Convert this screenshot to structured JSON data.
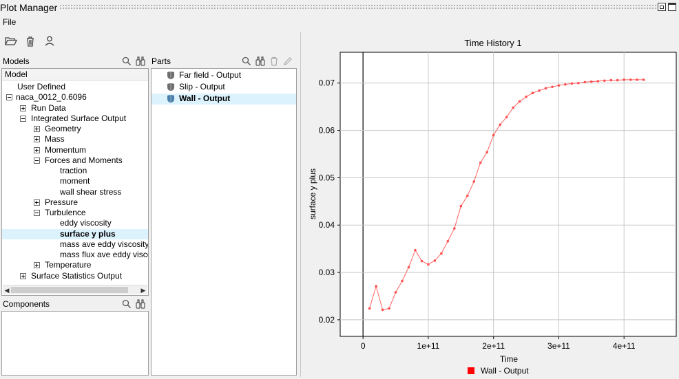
{
  "window": {
    "title": "Plot Manager"
  },
  "menu": {
    "file": "File"
  },
  "toolbar": {
    "open_icon": "folder-open-icon",
    "delete_icon": "trash-icon",
    "user_icon": "user-icon"
  },
  "models_panel": {
    "label": "Models",
    "header": "Model",
    "tree": [
      {
        "label": "User Defined",
        "level": 0,
        "expander": "none"
      },
      {
        "label": "naca_0012_0.6096",
        "level": 0,
        "expander": "minus"
      },
      {
        "label": "Run Data",
        "level": 1,
        "expander": "plus"
      },
      {
        "label": "Integrated Surface Output",
        "level": 1,
        "expander": "minus"
      },
      {
        "label": "Geometry",
        "level": 2,
        "expander": "plus"
      },
      {
        "label": "Mass",
        "level": 2,
        "expander": "plus"
      },
      {
        "label": "Momentum",
        "level": 2,
        "expander": "plus"
      },
      {
        "label": "Forces and Moments",
        "level": 2,
        "expander": "minus"
      },
      {
        "label": "traction",
        "level": 3,
        "expander": "none"
      },
      {
        "label": "moment",
        "level": 3,
        "expander": "none"
      },
      {
        "label": "wall shear stress",
        "level": 3,
        "expander": "none"
      },
      {
        "label": "Pressure",
        "level": 2,
        "expander": "plus"
      },
      {
        "label": "Turbulence",
        "level": 2,
        "expander": "minus"
      },
      {
        "label": "eddy viscosity",
        "level": 3,
        "expander": "none"
      },
      {
        "label": "surface y plus",
        "level": 3,
        "expander": "none",
        "selected": true
      },
      {
        "label": "mass ave eddy viscosity",
        "level": 3,
        "expander": "none"
      },
      {
        "label": "mass flux ave eddy viscos",
        "level": 3,
        "expander": "none"
      },
      {
        "label": "Temperature",
        "level": 2,
        "expander": "plus"
      },
      {
        "label": "Surface Statistics Output",
        "level": 1,
        "expander": "plus"
      }
    ]
  },
  "parts_panel": {
    "label": "Parts",
    "items": [
      {
        "label": "Far field - Output",
        "selected": false
      },
      {
        "label": "Slip - Output",
        "selected": false
      },
      {
        "label": "Wall - Output",
        "selected": true
      }
    ]
  },
  "components_panel": {
    "label": "Components"
  },
  "chart_data": {
    "type": "line",
    "title": "Time History 1",
    "xlabel": "Time",
    "ylabel": "surface y plus",
    "xlim": [
      -35000000000.0,
      480000000000.0
    ],
    "ylim": [
      0.0165,
      0.0765
    ],
    "xticks": [
      0,
      100000000000.0,
      200000000000.0,
      300000000000.0,
      400000000000.0
    ],
    "xtick_labels": [
      "0",
      "1e+11",
      "2e+11",
      "3e+11",
      "4e+11"
    ],
    "yticks": [
      0.02,
      0.03,
      0.04,
      0.05,
      0.06,
      0.07
    ],
    "ytick_labels": [
      "0.02",
      "0.03",
      "0.04",
      "0.05",
      "0.06",
      "0.07"
    ],
    "grid": true,
    "legend": "bottom-center",
    "series": [
      {
        "name": "Wall - Output",
        "color": "#ff0000",
        "x": [
          10000000000.0,
          20000000000.0,
          30000000000.0,
          40000000000.0,
          50000000000.0,
          60000000000.0,
          70000000000.0,
          80000000000.0,
          90000000000.0,
          100000000000.0,
          110000000000.0,
          120000000000.0,
          130000000000.0,
          140000000000.0,
          150000000000.0,
          160000000000.0,
          170000000000.0,
          180000000000.0,
          190000000000.0,
          200000000000.0,
          210000000000.0,
          220000000000.0,
          230000000000.0,
          240000000000.0,
          250000000000.0,
          260000000000.0,
          270000000000.0,
          280000000000.0,
          290000000000.0,
          300000000000.0,
          310000000000.0,
          320000000000.0,
          330000000000.0,
          340000000000.0,
          350000000000.0,
          360000000000.0,
          370000000000.0,
          380000000000.0,
          390000000000.0,
          400000000000.0,
          410000000000.0,
          420000000000.0,
          430000000000.0
        ],
        "y": [
          0.0224,
          0.0271,
          0.0221,
          0.0224,
          0.0258,
          0.0282,
          0.0311,
          0.0347,
          0.0324,
          0.0317,
          0.0325,
          0.034,
          0.0366,
          0.0393,
          0.044,
          0.0462,
          0.0492,
          0.0532,
          0.0554,
          0.059,
          0.0612,
          0.0628,
          0.0648,
          0.0661,
          0.0671,
          0.0679,
          0.0684,
          0.0689,
          0.0692,
          0.0695,
          0.0697,
          0.0699,
          0.07,
          0.0702,
          0.0703,
          0.0704,
          0.0705,
          0.0706,
          0.0706,
          0.0707,
          0.0707,
          0.0707,
          0.0707
        ]
      }
    ]
  }
}
